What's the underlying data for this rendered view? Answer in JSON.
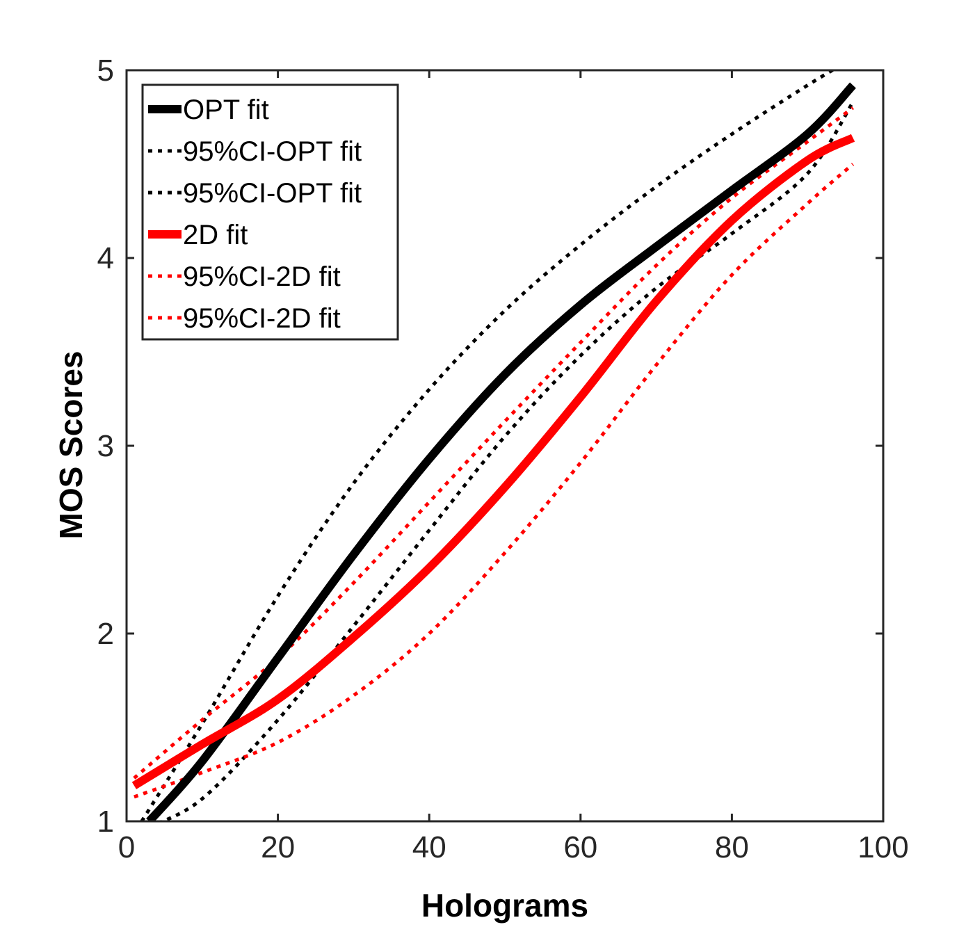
{
  "chart_data": {
    "type": "line",
    "title": "",
    "xlabel": "Holograms",
    "ylabel": "MOS Scores",
    "xlim": [
      0,
      100
    ],
    "ylim": [
      1,
      5
    ],
    "xticks": [
      0,
      20,
      40,
      60,
      80,
      100
    ],
    "yticks": [
      1,
      2,
      3,
      4,
      5
    ],
    "xtick_labels": [
      "0",
      "20",
      "40",
      "60",
      "80",
      "100"
    ],
    "ytick_labels": [
      "1",
      "2",
      "3",
      "4",
      "5"
    ],
    "grid": false,
    "legend_position": "top-left",
    "series": [
      {
        "name": "OPT fit",
        "color": "#000000",
        "style": "solid",
        "x": [
          3,
          10,
          20,
          30,
          40,
          50,
          60,
          70,
          80,
          90,
          96
        ],
        "y": [
          1.0,
          1.32,
          1.87,
          2.42,
          2.93,
          3.38,
          3.75,
          4.06,
          4.36,
          4.66,
          4.92
        ]
      },
      {
        "name": "95%CI-OPT fit",
        "color": "#000000",
        "style": "dotted",
        "x": [
          2,
          10,
          20,
          30,
          40,
          50,
          60,
          70,
          80,
          90,
          95
        ],
        "y": [
          1.0,
          1.52,
          2.2,
          2.8,
          3.3,
          3.72,
          4.07,
          4.38,
          4.66,
          4.92,
          5.04
        ]
      },
      {
        "name": "95%CI-OPT fit",
        "color": "#000000",
        "style": "dotted",
        "x": [
          3,
          10,
          20,
          30,
          40,
          50,
          60,
          70,
          80,
          90,
          96
        ],
        "y": [
          0.97,
          1.12,
          1.54,
          2.04,
          2.55,
          3.05,
          3.48,
          3.84,
          4.13,
          4.45,
          4.83
        ]
      },
      {
        "name": "2D fit",
        "color": "#ff0000",
        "style": "solid",
        "x": [
          1,
          10,
          20,
          30,
          40,
          50,
          60,
          70,
          80,
          90,
          96
        ],
        "y": [
          1.19,
          1.41,
          1.65,
          1.98,
          2.35,
          2.78,
          3.26,
          3.77,
          4.2,
          4.52,
          4.64
        ]
      },
      {
        "name": "95%CI-2D fit",
        "color": "#ff0000",
        "style": "dotted",
        "x": [
          1,
          10,
          20,
          30,
          40,
          50,
          60,
          70,
          80,
          90,
          96
        ],
        "y": [
          1.23,
          1.54,
          1.87,
          2.27,
          2.7,
          3.13,
          3.55,
          3.96,
          4.32,
          4.62,
          4.8
        ]
      },
      {
        "name": "95%CI-2D fit",
        "color": "#ff0000",
        "style": "dotted",
        "x": [
          1,
          10,
          20,
          30,
          40,
          50,
          60,
          70,
          80,
          90,
          96
        ],
        "y": [
          1.13,
          1.26,
          1.42,
          1.67,
          2.0,
          2.43,
          2.91,
          3.43,
          3.91,
          4.29,
          4.5
        ]
      }
    ]
  }
}
